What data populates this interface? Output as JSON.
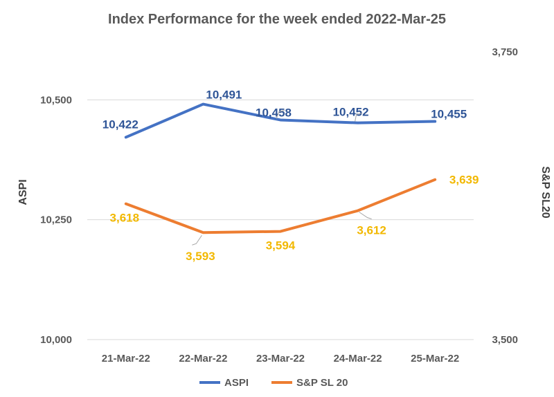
{
  "chart_data": {
    "type": "line",
    "title": "Index Performance for the week ended 2022-Mar-25",
    "categories": [
      "21-Mar-22",
      "22-Mar-22",
      "23-Mar-22",
      "24-Mar-22",
      "25-Mar-22"
    ],
    "y_left": {
      "label": "ASPI",
      "range": [
        10000,
        10600
      ],
      "ticks": [
        10000,
        10250,
        10500
      ],
      "tick_labels": [
        "10,000",
        "10,250",
        "10,500"
      ]
    },
    "y_right": {
      "label": "S&P SL20",
      "range": [
        3500,
        3750
      ],
      "ticks": [
        3500,
        3750
      ],
      "tick_labels": [
        "3,500",
        "3,750"
      ]
    },
    "gridlines": true,
    "legend_position": "bottom",
    "series": [
      {
        "name": "ASPI",
        "axis": "left",
        "color": "#4472c4",
        "values": [
          10422,
          10491,
          10458,
          10452,
          10455
        ],
        "data_labels": [
          "10,422",
          "10,491",
          "10,458",
          "10,452",
          "10,455"
        ],
        "label_color": "#2f5597"
      },
      {
        "name": "S&P SL 20",
        "axis": "right",
        "color": "#ed7d31",
        "values": [
          3618,
          3593,
          3594,
          3612,
          3639
        ],
        "data_labels": [
          "3,618",
          "3,593",
          "3,594",
          "3,612",
          "3,639"
        ],
        "label_color": "#f2b800"
      }
    ]
  }
}
